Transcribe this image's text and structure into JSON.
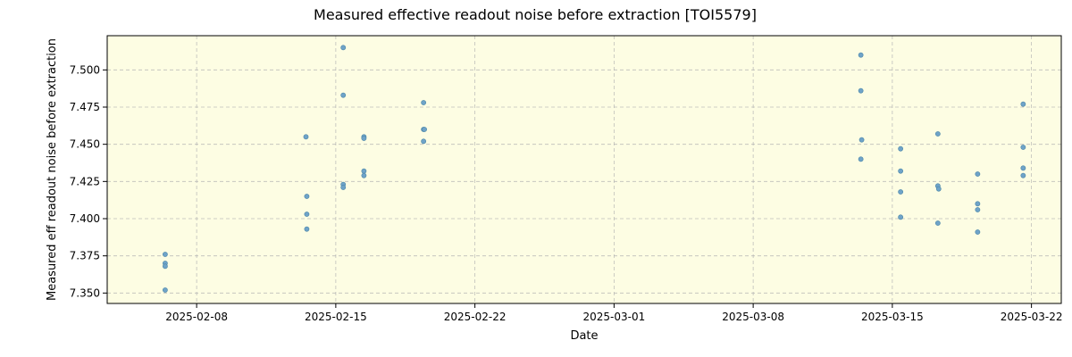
{
  "chart_data": {
    "type": "scatter",
    "title": "Measured effective readout noise before extraction [TOI5579]",
    "xlabel": "Date",
    "ylabel": "Measured eff readout noise before extraction",
    "xlim": [
      "2025-02-03T12:00",
      "2025-03-23T12:00"
    ],
    "ylim": [
      7.343,
      7.523
    ],
    "x_ticks": [
      "2025-02-08",
      "2025-02-15",
      "2025-02-22",
      "2025-03-01",
      "2025-03-08",
      "2025-03-15",
      "2025-03-22"
    ],
    "y_ticks": [
      7.35,
      7.375,
      7.4,
      7.425,
      7.45,
      7.475,
      7.5
    ],
    "y_tick_labels": [
      "7.350",
      "7.375",
      "7.400",
      "7.425",
      "7.450",
      "7.475",
      "7.500"
    ],
    "grid": true,
    "background_color": "#fdfde3",
    "point_color": "#6fa3c8",
    "points": [
      {
        "x": "2025-02-06T10:00",
        "y": 7.376
      },
      {
        "x": "2025-02-06T10:00",
        "y": 7.37
      },
      {
        "x": "2025-02-06T10:00",
        "y": 7.368
      },
      {
        "x": "2025-02-06T10:00",
        "y": 7.352
      },
      {
        "x": "2025-02-13T12:00",
        "y": 7.455
      },
      {
        "x": "2025-02-13T13:00",
        "y": 7.415
      },
      {
        "x": "2025-02-13T13:00",
        "y": 7.403
      },
      {
        "x": "2025-02-13T13:00",
        "y": 7.393
      },
      {
        "x": "2025-02-15T09:00",
        "y": 7.515
      },
      {
        "x": "2025-02-15T09:00",
        "y": 7.483
      },
      {
        "x": "2025-02-15T09:00",
        "y": 7.423
      },
      {
        "x": "2025-02-15T09:00",
        "y": 7.421
      },
      {
        "x": "2025-02-16T10:00",
        "y": 7.455
      },
      {
        "x": "2025-02-16T10:00",
        "y": 7.454
      },
      {
        "x": "2025-02-16T10:00",
        "y": 7.432
      },
      {
        "x": "2025-02-16T10:00",
        "y": 7.429
      },
      {
        "x": "2025-02-19T10:00",
        "y": 7.478
      },
      {
        "x": "2025-02-19T10:00",
        "y": 7.46
      },
      {
        "x": "2025-02-19T11:00",
        "y": 7.46
      },
      {
        "x": "2025-02-19T10:00",
        "y": 7.452
      },
      {
        "x": "2025-03-13T10:00",
        "y": 7.51
      },
      {
        "x": "2025-03-13T10:00",
        "y": 7.486
      },
      {
        "x": "2025-03-13T11:00",
        "y": 7.453
      },
      {
        "x": "2025-03-13T10:00",
        "y": 7.44
      },
      {
        "x": "2025-03-15T10:00",
        "y": 7.447
      },
      {
        "x": "2025-03-15T10:00",
        "y": 7.432
      },
      {
        "x": "2025-03-15T10:00",
        "y": 7.418
      },
      {
        "x": "2025-03-15T10:00",
        "y": 7.401
      },
      {
        "x": "2025-03-17T07:00",
        "y": 7.457
      },
      {
        "x": "2025-03-17T07:00",
        "y": 7.422
      },
      {
        "x": "2025-03-17T08:00",
        "y": 7.42
      },
      {
        "x": "2025-03-17T07:00",
        "y": 7.397
      },
      {
        "x": "2025-03-19T07:00",
        "y": 7.43
      },
      {
        "x": "2025-03-19T07:00",
        "y": 7.41
      },
      {
        "x": "2025-03-19T07:00",
        "y": 7.406
      },
      {
        "x": "2025-03-19T07:00",
        "y": 7.391
      },
      {
        "x": "2025-03-21T14:00",
        "y": 7.477
      },
      {
        "x": "2025-03-21T14:00",
        "y": 7.448
      },
      {
        "x": "2025-03-21T14:00",
        "y": 7.434
      },
      {
        "x": "2025-03-21T14:00",
        "y": 7.429
      }
    ]
  }
}
